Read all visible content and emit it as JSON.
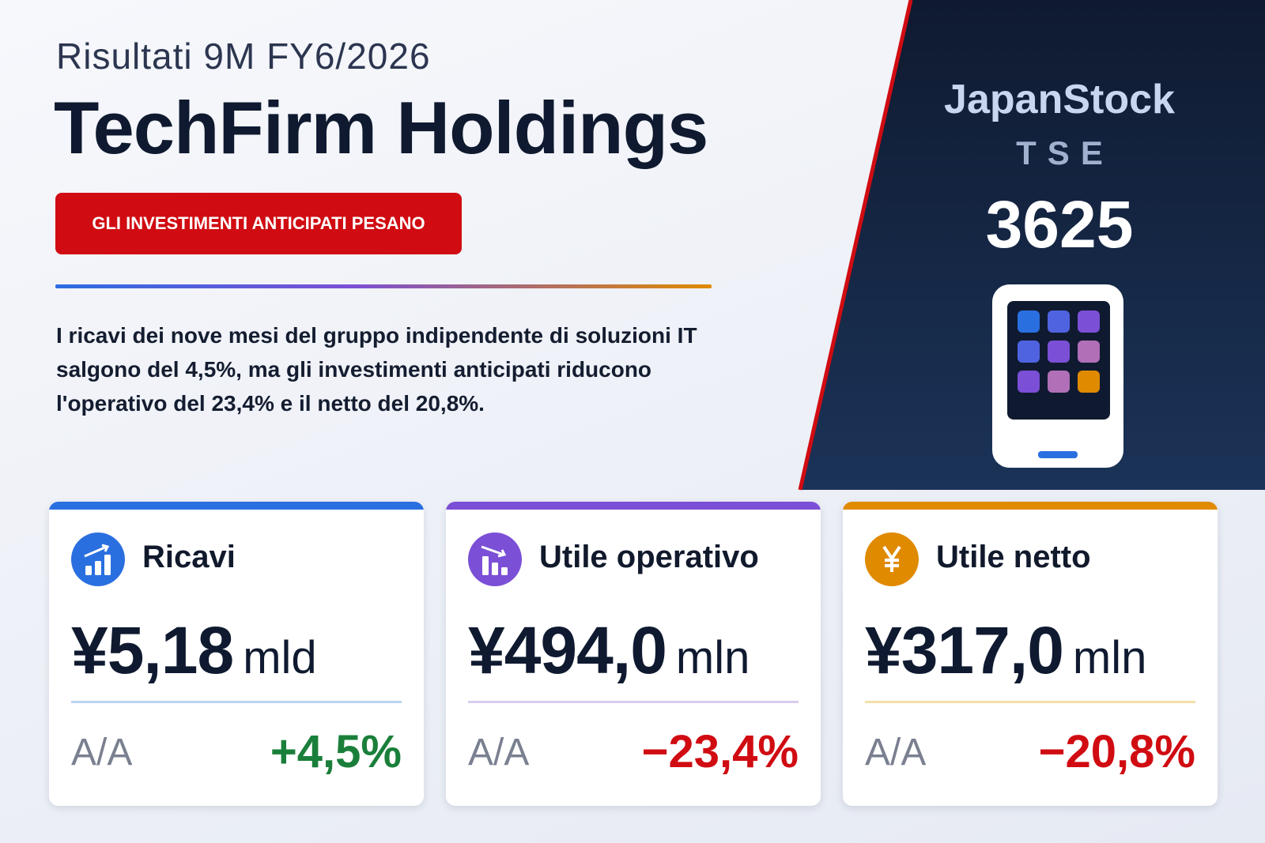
{
  "header": {
    "subtitle": "Risultati 9M FY6/2026",
    "title": "TechFirm Holdings",
    "badge": "GLI INVESTIMENTI ANTICIPATI PESANO",
    "summary": "I ricavi dei nove mesi del gruppo indipendente di soluzioni IT salgono del 4,5%, ma gli investimenti anticipati riducono l'operativo del 23,4% e il netto del 20,8%."
  },
  "ticker": {
    "brand": "JapanStock",
    "exchange": "TSE",
    "code": "3625"
  },
  "cards": [
    {
      "label": "Ricavi",
      "value": "¥5,18",
      "unit": "mld",
      "change_label": "A/A",
      "change": "+4,5%"
    },
    {
      "label": "Utile operativo",
      "value": "¥494,0",
      "unit": "mln",
      "change_label": "A/A",
      "change": "−23,4%"
    },
    {
      "label": "Utile netto",
      "value": "¥317,0",
      "unit": "mln",
      "change_label": "A/A",
      "change": "−20,8%"
    }
  ]
}
